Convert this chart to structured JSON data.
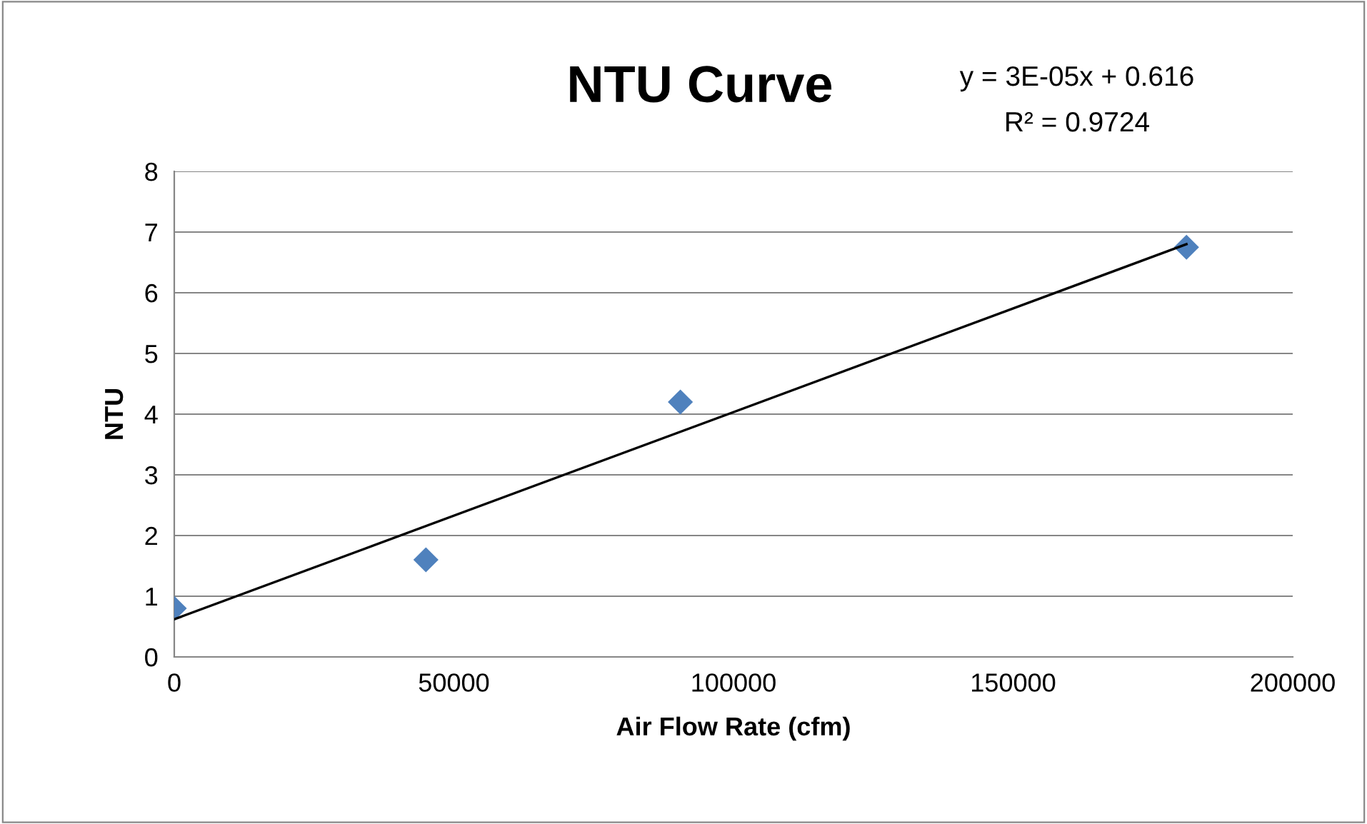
{
  "chart_data": {
    "type": "scatter",
    "title": "NTU Curve",
    "xlabel": "Air Flow Rate (cfm)",
    "ylabel": "NTU",
    "annotations": [
      "y = 3E-05x + 0.616",
      "R² = 0.9724"
    ],
    "series": [
      {
        "color": "#4f81bd",
        "marker": "diamond",
        "x": [
          0,
          45000,
          90500,
          181000
        ],
        "values": [
          0.8,
          1.6,
          4.2,
          6.75
        ]
      },
      {
        "type": "line",
        "color": "#000000",
        "marker": "none",
        "line_style": "solid",
        "x": [
          0,
          181000
        ],
        "values": [
          0.62,
          6.8
        ]
      }
    ],
    "xlim": [
      0,
      200000
    ],
    "xticks": [
      0,
      50000,
      100000,
      150000,
      200000
    ],
    "ylim": [
      0,
      8
    ],
    "yticks": [
      0,
      1,
      2,
      3,
      4,
      5,
      6,
      7,
      8
    ],
    "grid": "y",
    "legend": false
  }
}
